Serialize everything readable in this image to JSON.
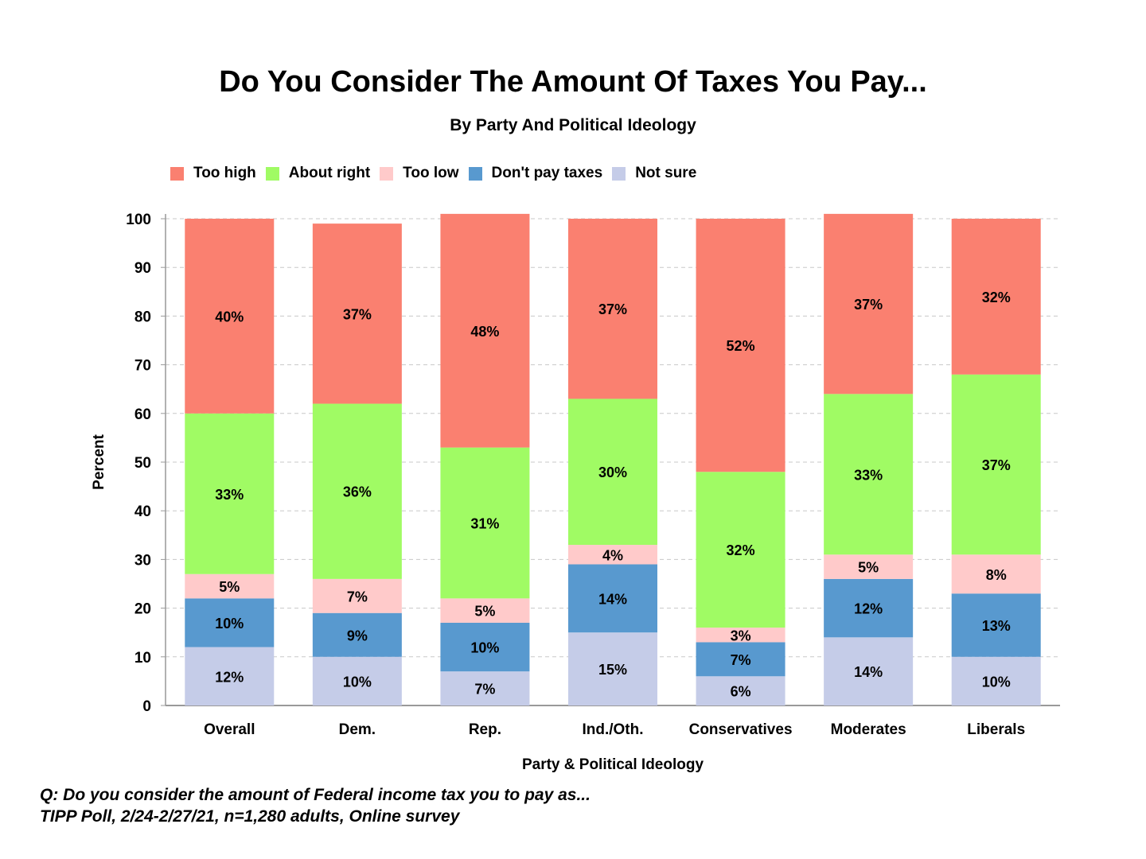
{
  "chart_data": {
    "type": "bar",
    "stacked": true,
    "title": "Do You Consider The Amount Of Taxes You Pay...",
    "subtitle": "By Party And Political Ideology",
    "xlabel": "Party & Political Ideology",
    "ylabel": "Percent",
    "ylim": [
      0,
      100
    ],
    "yticks": [
      0,
      10,
      20,
      30,
      40,
      50,
      60,
      70,
      80,
      90,
      100
    ],
    "grid": true,
    "legend_position": "top-left",
    "categories": [
      "Overall",
      "Dem.",
      "Rep.",
      "Ind./Oth.",
      "Conservatives",
      "Moderates",
      "Liberals"
    ],
    "series": [
      {
        "name": "Not sure",
        "color": "#c5cce8",
        "values": [
          12,
          10,
          7,
          15,
          6,
          14,
          10
        ]
      },
      {
        "name": "Don't pay taxes",
        "color": "#5899cf",
        "values": [
          10,
          9,
          10,
          14,
          7,
          12,
          13
        ]
      },
      {
        "name": "Too low",
        "color": "#ffcaca",
        "values": [
          5,
          7,
          5,
          4,
          3,
          5,
          8
        ]
      },
      {
        "name": "About right",
        "color": "#a0fb64",
        "values": [
          33,
          36,
          31,
          30,
          32,
          33,
          37
        ]
      },
      {
        "name": "Too high",
        "color": "#fa8070",
        "values": [
          40,
          37,
          48,
          37,
          52,
          37,
          32
        ]
      }
    ],
    "legend_order": [
      "Too high",
      "About right",
      "Too low",
      "Don't pay taxes",
      "Not sure"
    ],
    "value_suffix": "%"
  },
  "notes": {
    "question": "Q:  Do you consider the amount of Federal income tax you to pay as...",
    "source": "TIPP Poll, 2/24-2/27/21, n=1,280 adults, Online survey"
  }
}
